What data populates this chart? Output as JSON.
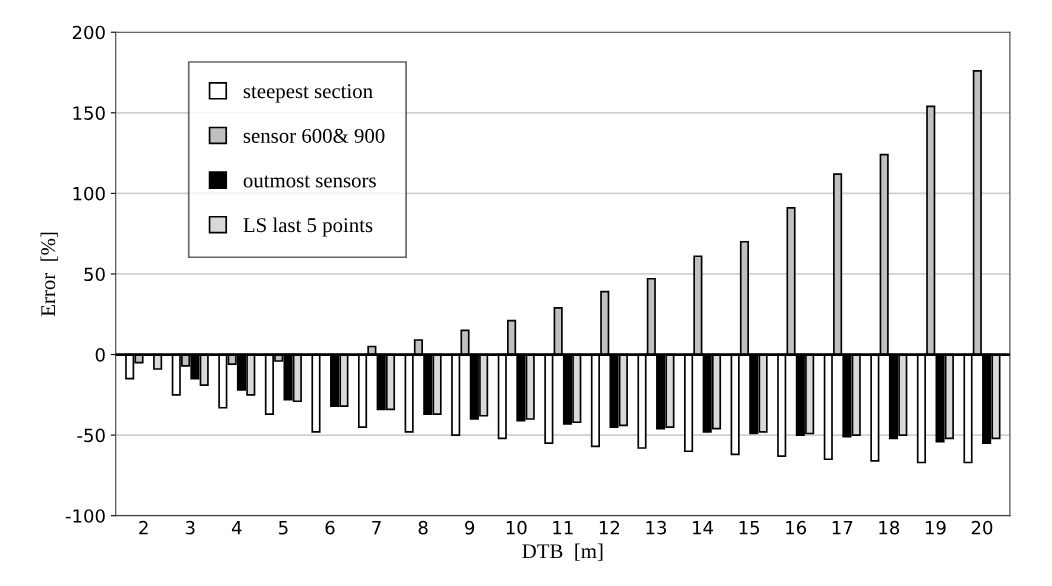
{
  "chart_data": {
    "type": "bar",
    "xlabel": "DTB  [m]",
    "ylabel": "Error  [%]",
    "categories": [
      "2",
      "3",
      "4",
      "5",
      "6",
      "7",
      "8",
      "9",
      "10",
      "11",
      "12",
      "13",
      "14",
      "15",
      "16",
      "17",
      "18",
      "19",
      "20"
    ],
    "series": [
      {
        "name": "steepest section",
        "color": "#ffffff",
        "values": [
          -15,
          -25,
          -33,
          -37,
          -48,
          -45,
          -48,
          -50,
          -52,
          -55,
          -57,
          -58,
          -60,
          -62,
          -63,
          -65,
          -66,
          -67,
          -67
        ]
      },
      {
        "name": "sensor 600& 900",
        "color": "#c0c0c0",
        "values": [
          -5,
          -7,
          -6,
          -4,
          null,
          5,
          9,
          15,
          21,
          29,
          39,
          47,
          61,
          70,
          91,
          112,
          124,
          154,
          176
        ]
      },
      {
        "name": "outmost sensors",
        "color": "#000000",
        "values": [
          null,
          -15,
          -22,
          -28,
          -32,
          -34,
          -37,
          -40,
          -41,
          -43,
          -45,
          -46,
          -48,
          -49,
          -50,
          -51,
          -52,
          -54,
          -55
        ]
      },
      {
        "name": "LS last 5 points",
        "color": "#d9d9d9",
        "values": [
          -9,
          -19,
          -25,
          -29,
          -32,
          -34,
          -37,
          -38,
          -40,
          -42,
          -44,
          -45,
          -46,
          -48,
          -49,
          -50,
          -50,
          -52,
          -52
        ]
      }
    ],
    "ylim": [
      -100,
      200
    ],
    "yticks": [
      -100,
      -50,
      0,
      50,
      100,
      150,
      200
    ],
    "grid": "y",
    "legend": "top left"
  }
}
